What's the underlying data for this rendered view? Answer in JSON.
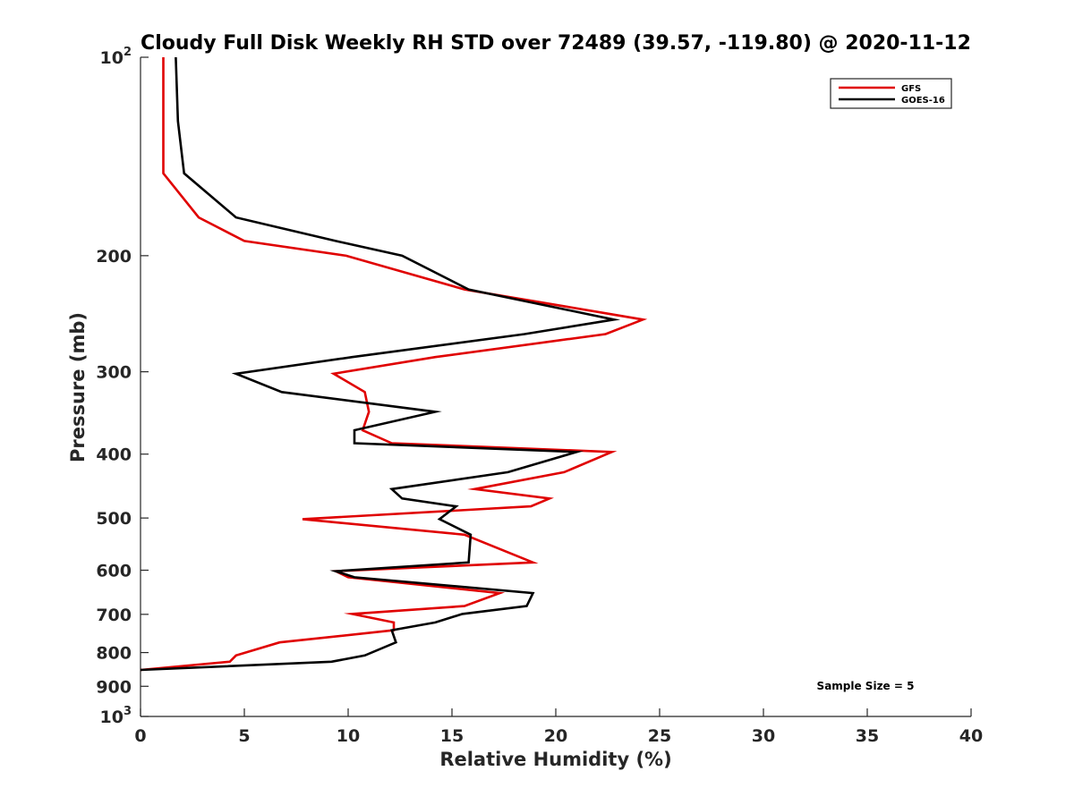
{
  "chart_data": {
    "type": "line",
    "title": "Cloudy Full Disk Weekly RH STD over 72489 (39.57, -119.80) @ 2020-11-12",
    "xlabel": "Relative Humidity (%)",
    "ylabel": "Pressure (mb)",
    "xlim": [
      0,
      40
    ],
    "ylim": [
      100,
      1000
    ],
    "y_scale": "log",
    "y_reversed": true,
    "x_ticks": [
      "0",
      "5",
      "10",
      "15",
      "20",
      "25",
      "30",
      "35",
      "40"
    ],
    "y_ticks": [
      {
        "value": 100,
        "base": "10",
        "exp": "2"
      },
      {
        "value": 200,
        "base": "200",
        "exp": ""
      },
      {
        "value": 300,
        "base": "300",
        "exp": ""
      },
      {
        "value": 400,
        "base": "400",
        "exp": ""
      },
      {
        "value": 500,
        "base": "500",
        "exp": ""
      },
      {
        "value": 600,
        "base": "600",
        "exp": ""
      },
      {
        "value": 700,
        "base": "700",
        "exp": ""
      },
      {
        "value": 800,
        "base": "800",
        "exp": ""
      },
      {
        "value": 900,
        "base": "900",
        "exp": ""
      },
      {
        "value": 1000,
        "base": "10",
        "exp": "3"
      }
    ],
    "legend_position": "top-right",
    "annotation": "Sample Size = 5",
    "grid": false,
    "series": [
      {
        "name": "GFS",
        "color": "#e00000",
        "points": [
          [
            1.1,
            100
          ],
          [
            1.1,
            125
          ],
          [
            1.1,
            150
          ],
          [
            2.8,
            175
          ],
          [
            5.0,
            190
          ],
          [
            9.9,
            200
          ],
          [
            15.6,
            225
          ],
          [
            24.2,
            250
          ],
          [
            22.4,
            263
          ],
          [
            14.2,
            285
          ],
          [
            9.3,
            302
          ],
          [
            10.8,
            322
          ],
          [
            11.0,
            345
          ],
          [
            10.7,
            368
          ],
          [
            12.1,
            385
          ],
          [
            22.7,
            397
          ],
          [
            20.4,
            426
          ],
          [
            16.1,
            452
          ],
          [
            19.7,
            467
          ],
          [
            18.8,
            480
          ],
          [
            7.8,
            502
          ],
          [
            15.6,
            530
          ],
          [
            18.9,
            584
          ],
          [
            9.4,
            602
          ],
          [
            10.0,
            615
          ],
          [
            17.3,
            650
          ],
          [
            15.6,
            680
          ],
          [
            10.2,
            699
          ],
          [
            12.2,
            720
          ],
          [
            12.2,
            740
          ],
          [
            6.7,
            772
          ],
          [
            4.6,
            808
          ],
          [
            4.3,
            826
          ],
          [
            0.0,
            850
          ]
        ]
      },
      {
        "name": "GOES-16",
        "color": "#000000",
        "points": [
          [
            1.7,
            100
          ],
          [
            1.8,
            125
          ],
          [
            2.1,
            150
          ],
          [
            4.6,
            175
          ],
          [
            9.4,
            190
          ],
          [
            12.6,
            200
          ],
          [
            15.8,
            225
          ],
          [
            22.8,
            250
          ],
          [
            18.5,
            263
          ],
          [
            10.2,
            285
          ],
          [
            4.6,
            302
          ],
          [
            6.8,
            322
          ],
          [
            14.2,
            345
          ],
          [
            10.3,
            368
          ],
          [
            10.3,
            385
          ],
          [
            21.0,
            397
          ],
          [
            17.7,
            426
          ],
          [
            12.1,
            452
          ],
          [
            12.6,
            467
          ],
          [
            15.2,
            480
          ],
          [
            14.4,
            502
          ],
          [
            15.9,
            530
          ],
          [
            15.8,
            584
          ],
          [
            9.4,
            602
          ],
          [
            10.3,
            615
          ],
          [
            18.9,
            650
          ],
          [
            18.6,
            680
          ],
          [
            15.5,
            699
          ],
          [
            14.2,
            720
          ],
          [
            12.1,
            740
          ],
          [
            12.3,
            772
          ],
          [
            10.8,
            808
          ],
          [
            9.2,
            826
          ],
          [
            0.0,
            850
          ]
        ]
      }
    ]
  }
}
